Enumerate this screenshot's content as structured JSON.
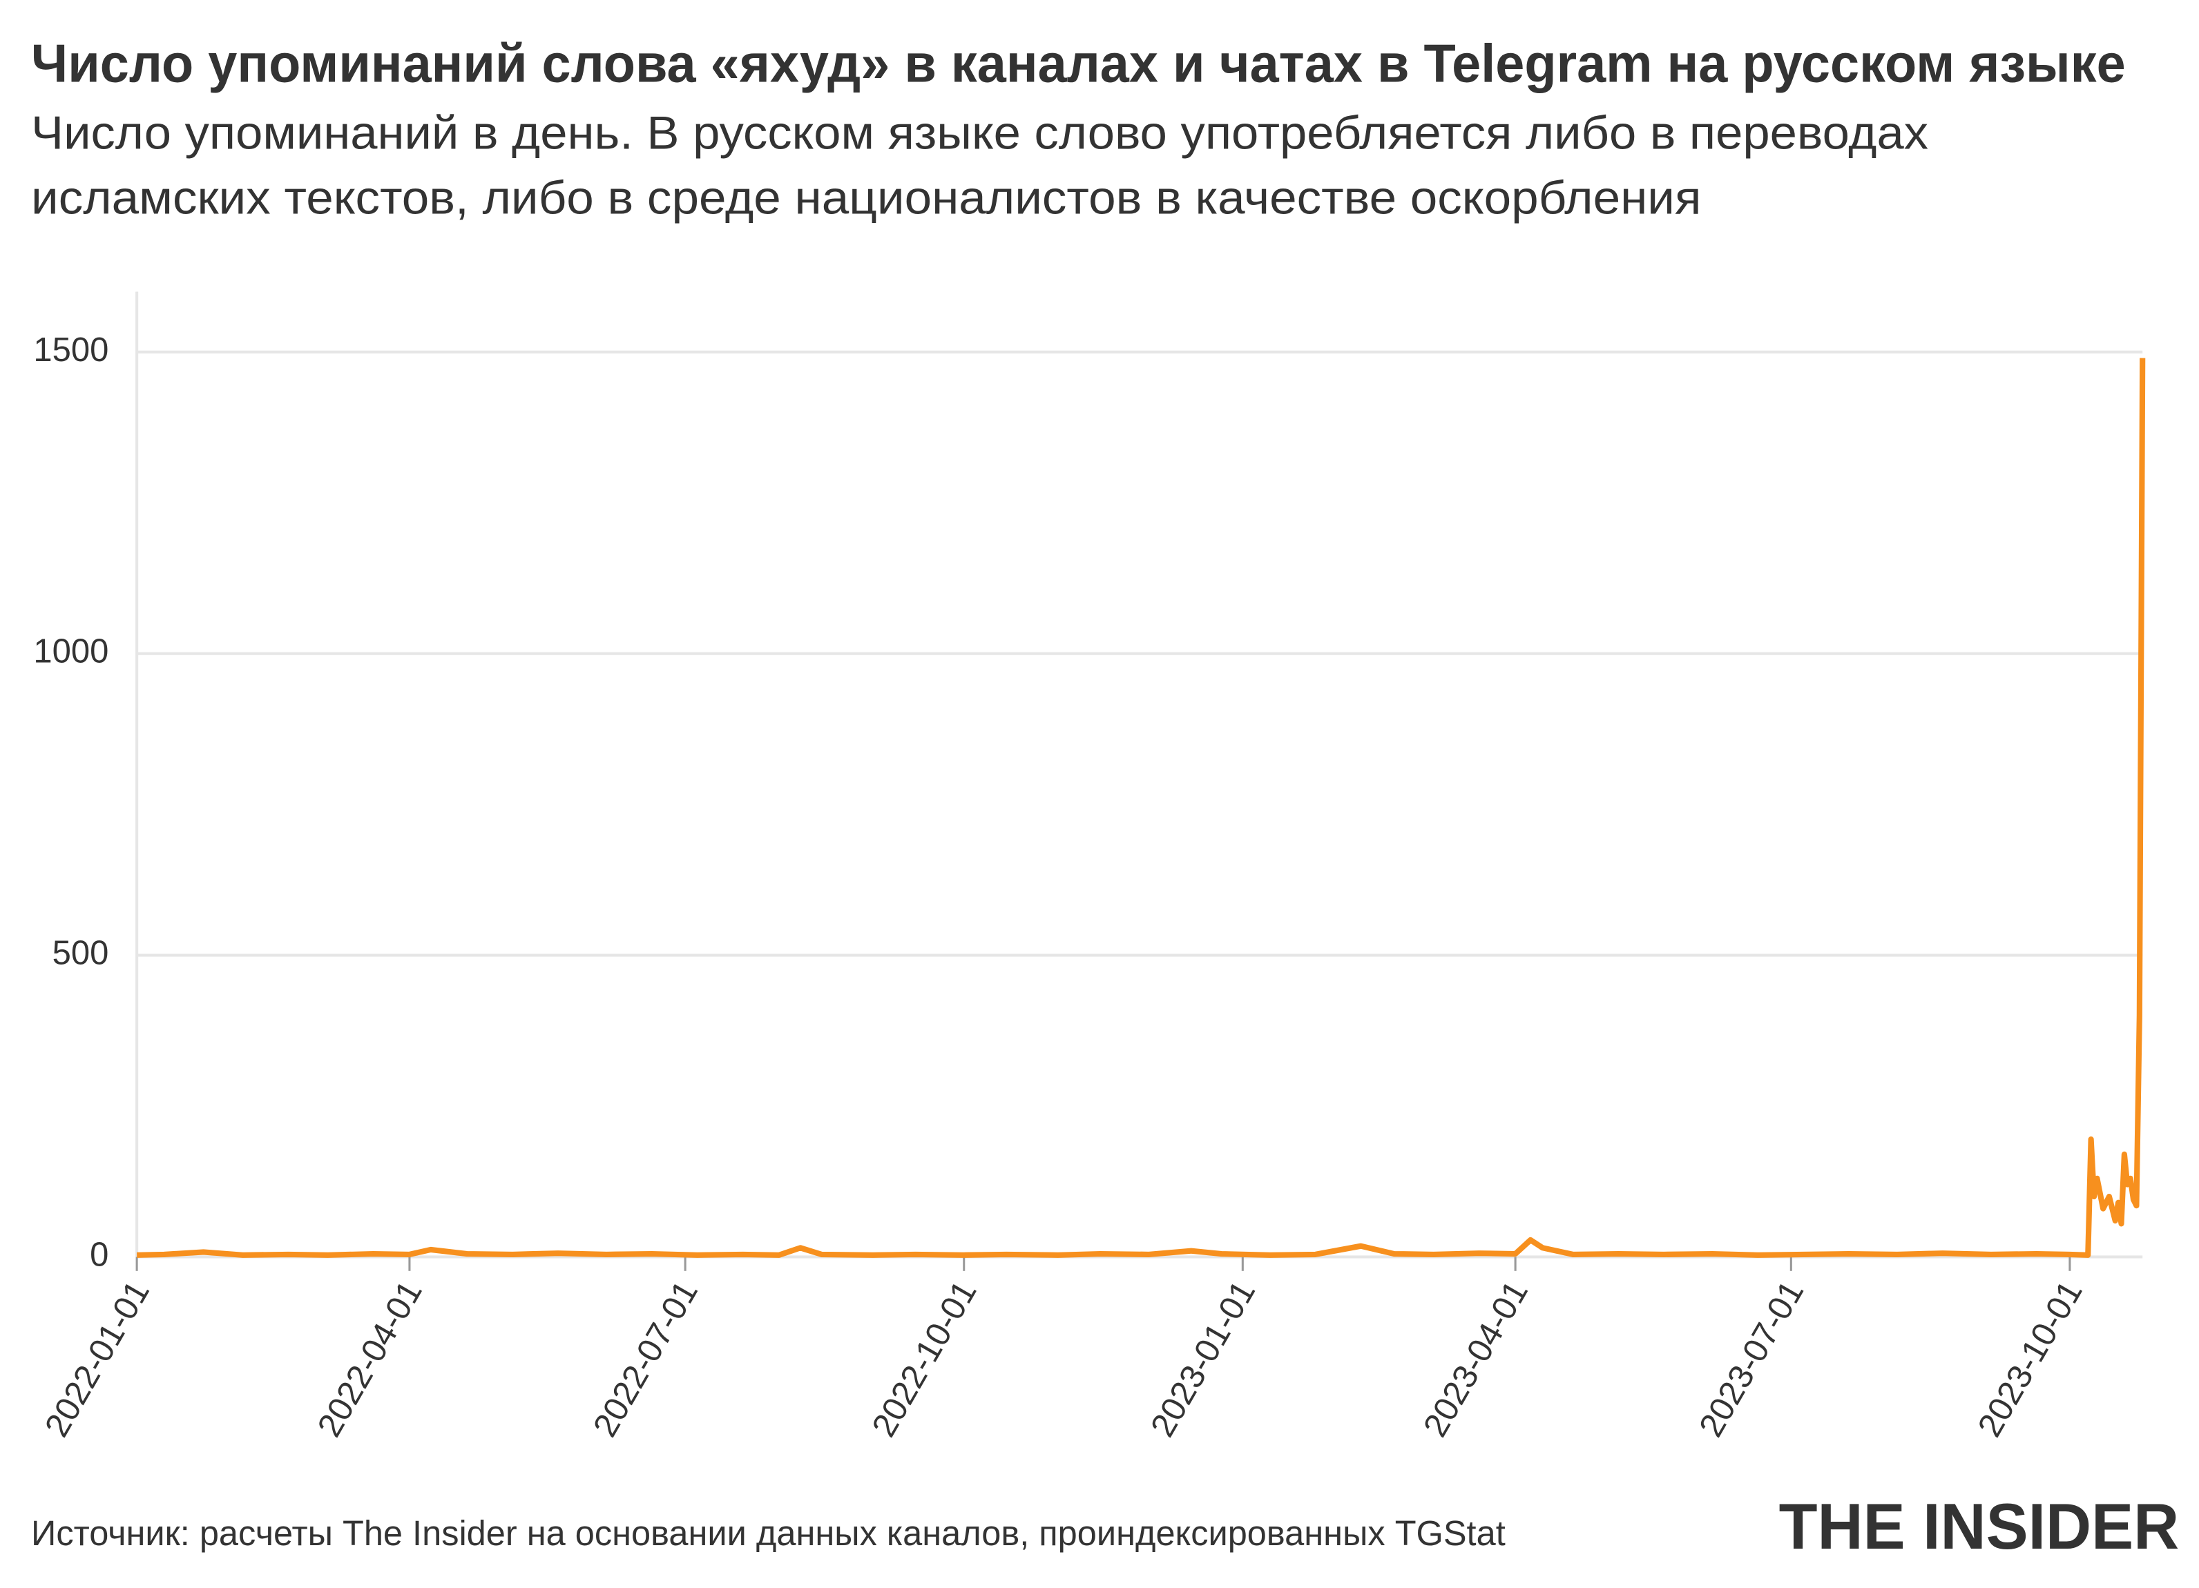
{
  "chart_data": {
    "type": "line",
    "title": "Число упоминаний слова «яхуд» в каналах и чатах в Telegram на русском языке",
    "subtitle": [
      "Число упоминаний в день. В русском языке слово употребляется либо в переводах",
      "исламских текстов, либо в среде националистов в качестве оскорбления"
    ],
    "source": "Источник: расчеты The Insider на основании данных каналов, проиндексированных TGStat",
    "logo": "THE INSIDER",
    "color": "#f7901e",
    "x": [
      "2022-01-01",
      "2022-01-10",
      "2022-01-23",
      "2022-02-05",
      "2022-02-20",
      "2022-03-05",
      "2022-03-20",
      "2022-04-01",
      "2022-04-08",
      "2022-04-20",
      "2022-05-05",
      "2022-05-20",
      "2022-06-05",
      "2022-06-20",
      "2022-07-05",
      "2022-07-20",
      "2022-08-01",
      "2022-08-08",
      "2022-08-15",
      "2022-09-01",
      "2022-09-15",
      "2022-10-01",
      "2022-10-15",
      "2022-11-01",
      "2022-11-15",
      "2022-12-01",
      "2022-12-15",
      "2022-12-25",
      "2023-01-10",
      "2023-01-25",
      "2023-02-09",
      "2023-02-20",
      "2023-03-05",
      "2023-03-20",
      "2023-04-01",
      "2023-04-06",
      "2023-04-10",
      "2023-04-20",
      "2023-05-05",
      "2023-05-20",
      "2023-06-05",
      "2023-06-20",
      "2023-07-05",
      "2023-07-20",
      "2023-08-05",
      "2023-08-20",
      "2023-09-05",
      "2023-09-20",
      "2023-10-01",
      "2023-10-07",
      "2023-10-08",
      "2023-10-09",
      "2023-10-10",
      "2023-10-12",
      "2023-10-14",
      "2023-10-16",
      "2023-10-17",
      "2023-10-18",
      "2023-10-19",
      "2023-10-20",
      "2023-10-21",
      "2023-10-22",
      "2023-10-23",
      "2023-10-24",
      "2023-10-25"
    ],
    "values": [
      3,
      4,
      8,
      3,
      4,
      3,
      5,
      4,
      12,
      5,
      4,
      6,
      4,
      5,
      3,
      4,
      3,
      15,
      4,
      3,
      4,
      3,
      4,
      3,
      5,
      4,
      10,
      5,
      3,
      4,
      18,
      5,
      4,
      6,
      5,
      28,
      15,
      4,
      5,
      4,
      5,
      3,
      4,
      5,
      4,
      6,
      4,
      5,
      4,
      3,
      195,
      100,
      130,
      80,
      100,
      60,
      90,
      55,
      170,
      120,
      130,
      95,
      85,
      400,
      1490
    ],
    "xlim": [
      "2022-01-01",
      "2023-10-25"
    ],
    "xticks": [
      "2022-01-01",
      "2022-04-01",
      "2022-07-01",
      "2022-10-01",
      "2023-01-01",
      "2023-04-01",
      "2023-07-01",
      "2023-10-01"
    ],
    "ylim": [
      0,
      1600
    ],
    "yticks": [
      0,
      500,
      1000,
      1500
    ],
    "grid": true
  }
}
